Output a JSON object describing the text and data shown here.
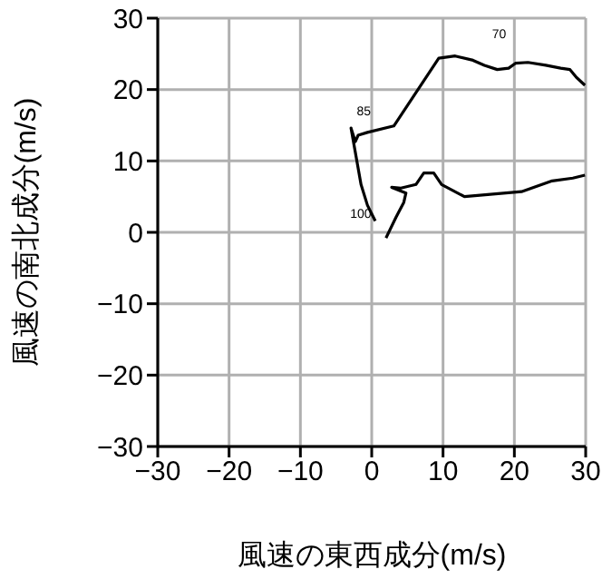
{
  "chart_data": {
    "type": "line",
    "xlabel": "風速の東西成分(m/s)",
    "ylabel": "風速の南北成分(m/s)",
    "xlim": [
      -30,
      30
    ],
    "xticks": [
      -30,
      -20,
      -10,
      0,
      10,
      20,
      30
    ],
    "ylim": [
      -30,
      30
    ],
    "yticks": [
      -30,
      -20,
      -10,
      0,
      10,
      20,
      30
    ],
    "grid": true,
    "marker": "none",
    "line_style": "solid",
    "series": [
      {
        "color": "#000000",
        "x": [
          0.5,
          -0.6,
          -1.5,
          -2.9,
          -2.3,
          -1.9,
          -0.6,
          3.1,
          9.4,
          11.7,
          14.2,
          15.8,
          17.6,
          19.2,
          20.2,
          21.9,
          24.4,
          26.5,
          27.8,
          28.7,
          29.9
        ],
        "values": [
          1.6,
          3.8,
          6.7,
          14.6,
          12.7,
          13.6,
          14.0,
          14.9,
          24.4,
          24.7,
          24.1,
          23.4,
          22.8,
          23.0,
          23.7,
          23.8,
          23.4,
          23.0,
          22.8,
          21.7,
          20.6
        ]
      },
      {
        "color": "#000000",
        "x": [
          2.0,
          3.4,
          4.5,
          4.8,
          2.8,
          4.1,
          6.2,
          7.3,
          8.7,
          9.8,
          13.0,
          21.0,
          25.3,
          28.2,
          29.9
        ],
        "values": [
          -0.8,
          2.1,
          4.2,
          5.5,
          6.3,
          6.2,
          6.7,
          8.3,
          8.3,
          6.7,
          5.0,
          5.7,
          7.2,
          7.6,
          8.0
        ]
      }
    ],
    "annotations": [
      {
        "text": "70",
        "x": 17.6,
        "y": 22.8
      },
      {
        "text": "85",
        "x": -0.6,
        "y": 14.0
      },
      {
        "text": "100",
        "x": 0.5,
        "y": 1.6
      }
    ]
  }
}
